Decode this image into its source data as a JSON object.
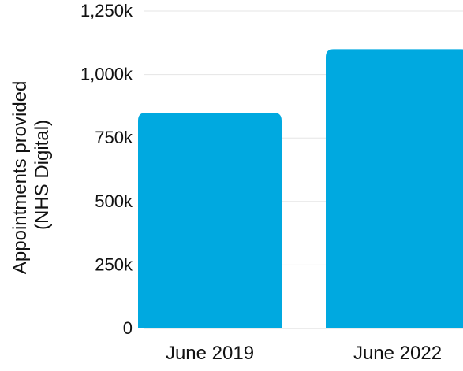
{
  "chart_data": {
    "type": "bar",
    "title": "",
    "xlabel": "",
    "ylabel_lines": [
      "Appointments provided",
      "(NHS Digital)"
    ],
    "categories": [
      "June 2019",
      "June 2022"
    ],
    "values": [
      850000,
      1100000
    ],
    "ylim": [
      0,
      1250000
    ],
    "yticks": [
      0,
      250000,
      500000,
      750000,
      1000000,
      1250000
    ],
    "ytick_labels": [
      "0",
      "250k",
      "500k",
      "750k",
      "1,000k",
      "1,250k"
    ],
    "grid": true,
    "bar_color": "#00A9E0",
    "grid_color": "#e5e5e5"
  }
}
